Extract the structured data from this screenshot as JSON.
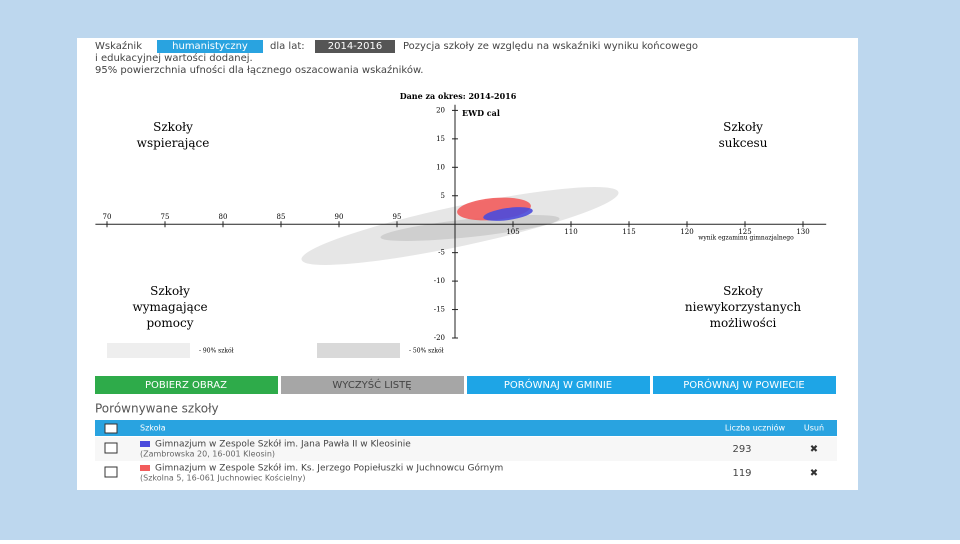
{
  "header": {
    "label_indicator": "Wskaźnik",
    "indicator": "humanistyczny",
    "label_years": "dla lat:",
    "years": "2014-2016",
    "description": "Pozycja szkoły ze względu na wskaźniki wyniku końcowego",
    "description2": "i edukacyjnej wartości dodanej.",
    "subtitle": "95% powierzchnia ufności dla łącznego oszacowania wskaźników."
  },
  "chart_data": {
    "type": "ellipse",
    "title": "Dane za okres: 2014-2016",
    "ylabel": "EWD cal",
    "xlabel": "wynik egzaminu gimnazjalnego",
    "xlim": [
      69,
      132
    ],
    "ylim": [
      -20,
      21
    ],
    "xticks": [
      70,
      75,
      80,
      85,
      90,
      95,
      105,
      110,
      115,
      120,
      125,
      130
    ],
    "yticks": [
      20,
      15,
      10,
      5,
      -5,
      -10,
      -15,
      -20
    ],
    "quadrants": [
      "Szkoły wspierające",
      "Szkoły sukcesu",
      "Szkoły wymagające pomocy",
      "Szkoły niewykorzystanych możliwości"
    ],
    "legend": [
      "- 90% szkół",
      "- 50% szkół"
    ]
  },
  "buttons": [
    "POBIERZ OBRAZ",
    "WYCZYŚĆ LISTĘ",
    "PORÓWNAJ W GMINIE",
    "PORÓWNAJ W POWIECIE"
  ],
  "table": {
    "title": "Porównywane szkoły",
    "columns": [
      "Szkoła",
      "Liczba uczniów",
      "Usuń"
    ],
    "rows": [
      {
        "name": "Gimnazjum w Zespole Szkół im. Jana Pawła II w Kleosinie",
        "address": "(Zambrowska 20, 16-001 Kleosin)",
        "students": 293
      },
      {
        "name": "Gimnazjum w Zespole Szkół im. Ks. Jerzego Popiełuszki w Juchnowcu Górnym",
        "address": "(Szkolna 5, 16-061 Juchnowiec Kościelny)",
        "students": 119
      }
    ]
  }
}
